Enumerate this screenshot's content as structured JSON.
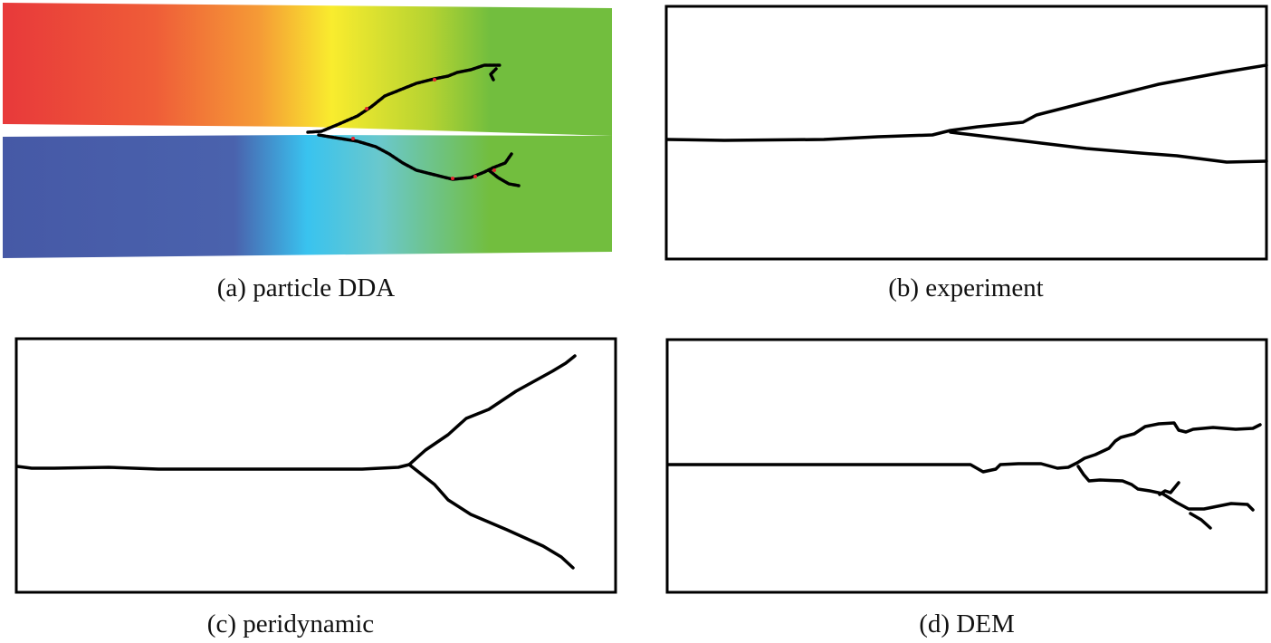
{
  "panels": [
    {
      "id": "a",
      "caption": "(a) particle DDA"
    },
    {
      "id": "b",
      "caption": "(b) experiment"
    },
    {
      "id": "c",
      "caption": "(c) peridynamic"
    },
    {
      "id": "d",
      "caption": "(d) DEM"
    }
  ],
  "colors": {
    "top_slab": [
      "#e8393a",
      "#f07a35",
      "#fbb535",
      "#f8ee2d",
      "#c5d92d",
      "#72be3e"
    ],
    "bottom_slab": [
      "#4659a6",
      "#4a6bb0",
      "#35c6ef",
      "#68c9c6",
      "#72be3e"
    ],
    "crack": "#000000"
  }
}
